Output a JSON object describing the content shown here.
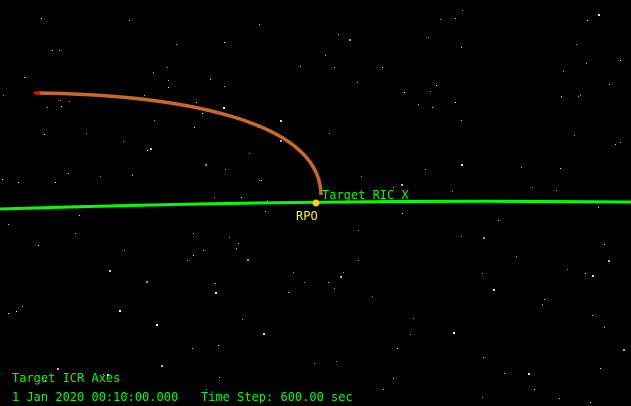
{
  "scene": {
    "target_label": "Target RIC X",
    "chaser_label": "RPO",
    "colors": {
      "background": "#000000",
      "target_axis": "#00ff00",
      "trajectory": "#c8682a",
      "trajectory_start": "#ff0000",
      "chaser": "#ffd000",
      "hud_text": "#00ff00"
    }
  },
  "hud": {
    "frame": "Target ICR Axes",
    "datetime": "1 Jan 2020 00:10:00.000",
    "time_step": "Time Step: 600.00 sec"
  }
}
